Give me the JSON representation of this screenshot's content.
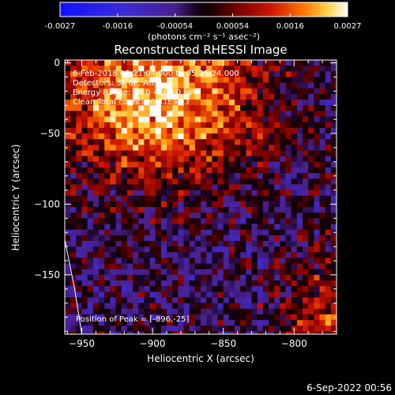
{
  "chart_data": {
    "type": "heatmap",
    "title": "Reconstructed RHESSI Image",
    "xlabel": "Heliocentric X (arcsec)",
    "ylabel": "Heliocentric Y (arcsec)",
    "xlim": [
      -962,
      -770
    ],
    "ylim": [
      -192,
      2
    ],
    "x_ticks": [
      -950,
      -900,
      -850,
      -800
    ],
    "y_ticks": [
      0,
      -50,
      -100,
      -150
    ],
    "colorbar": {
      "unit_label": "(photons cm⁻² s⁻¹ asec⁻²)",
      "range": [
        -0.0027,
        0.0027
      ],
      "ticks": [
        "-0.0027",
        "-0.0016",
        "-0.00054",
        "0.00054",
        "0.0016",
        "0.0027"
      ]
    },
    "annotations": [
      "6-Feb-2018 05:21:04.000 to 05:25:24.000",
      "Detectors: 3F 8F, Att 0",
      "Energy Range: 25.0 - 100.0 keV",
      "Clean    Total counts: 6.81E+03"
    ],
    "peak_label": "Position of Peak = [-896,-25]",
    "peak": [
      -896,
      -25
    ],
    "limb_curve": [
      [
        -962,
        -125
      ],
      [
        -955,
        -160
      ],
      [
        -950,
        -192
      ]
    ],
    "grid": false,
    "pixel_size_arcsec": 4
  },
  "footer": {
    "timestamp": "6-Sep-2022 00:56"
  }
}
